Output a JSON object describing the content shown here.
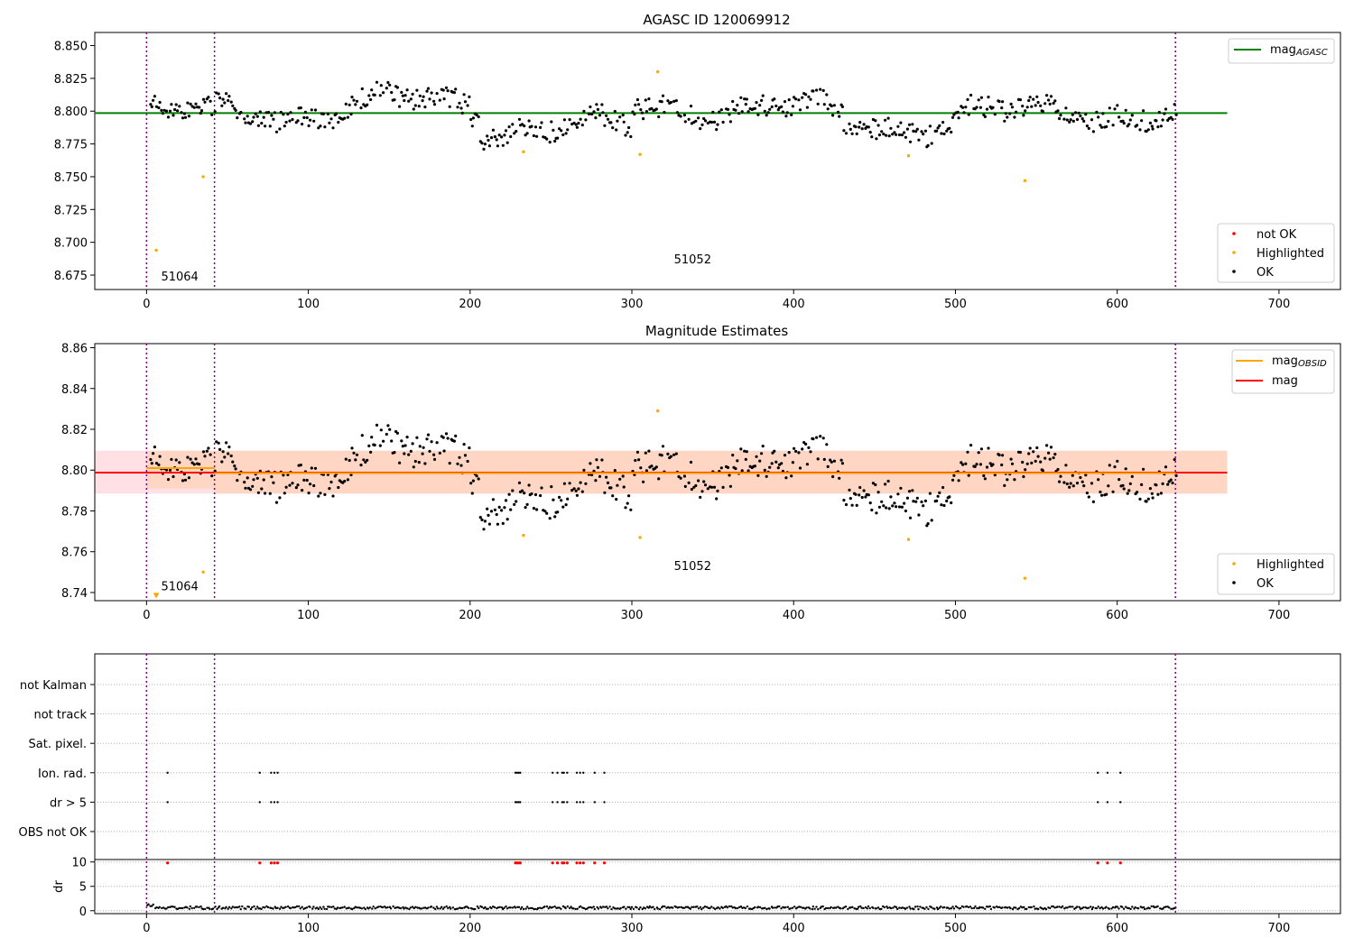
{
  "chart_data": [
    {
      "type": "scatter",
      "title": "AGASC ID 120069912",
      "xlim": [
        -32,
        738
      ],
      "ylim": [
        8.664,
        8.86
      ],
      "xticks": [
        0,
        100,
        200,
        300,
        400,
        500,
        600,
        700
      ],
      "yticks": [
        8.675,
        8.7,
        8.725,
        8.75,
        8.775,
        8.8,
        8.825,
        8.85
      ],
      "ytick_decimals": 3,
      "vlines": [
        0,
        42,
        636
      ],
      "obsid_labels": [
        {
          "text": "51064",
          "x": 9,
          "y": 8.671
        },
        {
          "text": "51052",
          "x": 326,
          "y": 8.684
        }
      ],
      "ref_line": {
        "name": "mag_AGASC",
        "value": 8.7985,
        "x": [
          -32,
          668
        ],
        "color": "#008000"
      },
      "series": [
        {
          "name": "not OK",
          "color": "#ff0000",
          "marker": "dot",
          "points": []
        },
        {
          "name": "Highlighted",
          "color": "#ffa500",
          "marker": "dot",
          "points": [
            [
              6,
              8.694
            ],
            [
              35,
              8.75
            ],
            [
              233,
              8.769
            ],
            [
              305,
              8.767
            ],
            [
              316,
              8.83
            ],
            [
              471,
              8.766
            ],
            [
              543,
              8.747
            ]
          ]
        },
        {
          "name": "OK",
          "color": "#000000",
          "marker": "dot",
          "generated": true,
          "base": 8.7985
        }
      ],
      "legend_top": {
        "entries": [
          {
            "label": "mag",
            "sub": "AGASC",
            "color": "#008000",
            "type": "line"
          }
        ],
        "loc": "upper right"
      },
      "legend_bottom": {
        "entries": [
          {
            "label": "not OK",
            "color": "#ff0000",
            "type": "dot"
          },
          {
            "label": "Highlighted",
            "color": "#ffa500",
            "type": "dot"
          },
          {
            "label": "OK",
            "color": "#000000",
            "type": "dot"
          }
        ],
        "loc": "lower right"
      }
    },
    {
      "type": "scatter",
      "title": "Magnitude Estimates",
      "xlim": [
        -32,
        738
      ],
      "ylim": [
        8.736,
        8.862
      ],
      "xticks": [
        0,
        100,
        200,
        300,
        400,
        500,
        600,
        700
      ],
      "yticks": [
        8.74,
        8.76,
        8.78,
        8.8,
        8.82,
        8.84,
        8.86
      ],
      "ytick_decimals": 2,
      "vlines": [
        0,
        42,
        636
      ],
      "obsid_labels": [
        {
          "text": "51064",
          "x": 9,
          "y": 8.741
        },
        {
          "text": "51052",
          "x": 326,
          "y": 8.751
        }
      ],
      "bands": [
        {
          "x": [
            -32,
            668
          ],
          "y": [
            8.7885,
            8.8095
          ],
          "color": "#ffd6dc"
        },
        {
          "x": [
            42,
            668
          ],
          "y": [
            8.7885,
            8.8095
          ],
          "color": "#ffd2b8"
        },
        {
          "x": [
            0,
            42
          ],
          "y": [
            8.791,
            8.8095
          ],
          "color": "#ffd2b8"
        }
      ],
      "mag": {
        "name": "mag",
        "value": 8.7988,
        "x": [
          -32,
          668
        ],
        "color": "#ff0000"
      },
      "mag_obsid": [
        {
          "x": [
            0,
            42
          ],
          "value": 8.801,
          "color": "#ffa500"
        },
        {
          "x": [
            42,
            636
          ],
          "value": 8.7985,
          "color": "#ffa500"
        }
      ],
      "outlier_marker": {
        "x": 6,
        "y": 8.7385,
        "color": "#ffa500"
      },
      "series": [
        {
          "name": "Highlighted",
          "color": "#ffa500",
          "marker": "dot",
          "points": [
            [
              35,
              8.75
            ],
            [
              233,
              8.768
            ],
            [
              305,
              8.767
            ],
            [
              316,
              8.829
            ],
            [
              471,
              8.766
            ],
            [
              543,
              8.747
            ]
          ]
        },
        {
          "name": "OK",
          "color": "#000000",
          "marker": "dot",
          "generated": true,
          "base": 8.7985
        }
      ],
      "legend_top": {
        "entries": [
          {
            "label": "mag",
            "sub": "OBSID",
            "color": "#ffa500",
            "type": "line"
          },
          {
            "label": "mag",
            "sub": "",
            "color": "#ff0000",
            "type": "line"
          }
        ],
        "loc": "upper right"
      },
      "legend_bottom": {
        "entries": [
          {
            "label": "Highlighted",
            "color": "#ffa500",
            "type": "dot"
          },
          {
            "label": "OK",
            "color": "#000000",
            "type": "dot"
          }
        ],
        "loc": "lower right"
      }
    },
    {
      "type": "scatter",
      "title": "",
      "xlim": [
        -32,
        738
      ],
      "xticks": [
        0,
        100,
        200,
        300,
        400,
        500,
        600,
        700
      ],
      "vlines": [
        0,
        42,
        636
      ],
      "flag_rows": [
        "not Kalman",
        "not track",
        "Sat. pixel.",
        "Ion. rad.",
        "dr > 5",
        "OBS not OK"
      ],
      "flag_points": {
        "Ion. rad.": [
          13,
          70,
          77,
          79,
          81,
          228,
          229,
          230,
          231,
          251,
          254,
          257,
          258,
          260,
          266,
          268,
          270,
          277,
          283,
          588,
          594,
          602
        ],
        "dr > 5": [
          13,
          70,
          77,
          79,
          81,
          228,
          229,
          230,
          231,
          251,
          254,
          257,
          258,
          260,
          266,
          268,
          270,
          277,
          283,
          588,
          594,
          602
        ]
      },
      "dr": {
        "ylabel": "dr",
        "ylim": [
          -0.6,
          10.5
        ],
        "yticks": [
          0,
          5,
          10
        ],
        "high_points": [
          13,
          70,
          77,
          79,
          81,
          228,
          229,
          230,
          231,
          251,
          254,
          257,
          258,
          260,
          266,
          268,
          270,
          277,
          283,
          588,
          594,
          602
        ],
        "high_value": 9.8,
        "high_color": "#ff0000",
        "generated": true,
        "base": 0.6
      }
    }
  ]
}
